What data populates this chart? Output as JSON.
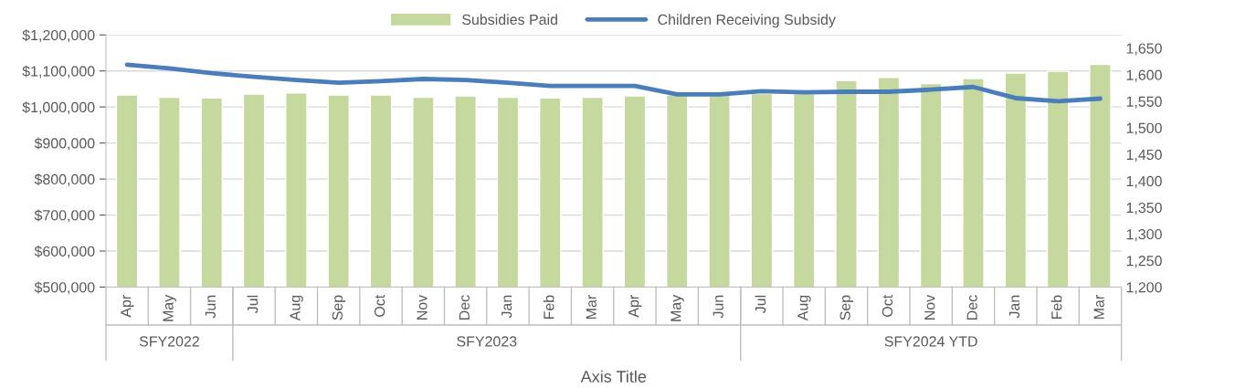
{
  "chart_data": {
    "type": "bar",
    "xlabel": "Axis Title",
    "categories": [
      "Apr",
      "May",
      "Jun",
      "Jul",
      "Aug",
      "Sep",
      "Oct",
      "Nov",
      "Dec",
      "Jan",
      "Feb",
      "Mar",
      "Apr",
      "May",
      "Jun",
      "Jul",
      "Aug",
      "Sep",
      "Oct",
      "Nov",
      "Dec",
      "Jan",
      "Feb",
      "Mar"
    ],
    "series": [
      {
        "name": "Subsidies Paid",
        "color": "#c5d89e",
        "values": [
          1033000,
          1027000,
          1025000,
          1036000,
          1039000,
          1033000,
          1033000,
          1027000,
          1031000,
          1027000,
          1025000,
          1027000,
          1031000,
          1033000,
          1033000,
          1037000,
          1037000,
          1073000,
          1082000,
          1065000,
          1079000,
          1094000,
          1099000,
          1118000
        ]
      },
      {
        "name": "Children Receiving Subsidy",
        "type": "line",
        "axis": "y2",
        "color": "#4a7ebb",
        "values": [
          1619,
          1612,
          1603,
          1596,
          1590,
          1585,
          1588,
          1592,
          1590,
          1585,
          1579,
          1579,
          1579,
          1563,
          1563,
          1569,
          1567,
          1568,
          1568,
          1572,
          1577,
          1556,
          1550,
          1555
        ]
      }
    ],
    "ylim": [
      500000,
      1200000
    ],
    "yticks": [
      {
        "value": 500000,
        "label": "$500,000"
      },
      {
        "value": 600000,
        "label": "$600,000"
      },
      {
        "value": 700000,
        "label": "$700,000"
      },
      {
        "value": 800000,
        "label": "$800,000"
      },
      {
        "value": 900000,
        "label": "$900,000"
      },
      {
        "value": 1000000,
        "label": "$1,000,000"
      },
      {
        "value": 1100000,
        "label": "$1,100,000"
      },
      {
        "value": 1200000,
        "label": "$1,200,000"
      }
    ],
    "y2lim": [
      1200,
      1675
    ],
    "y2ticks": [
      {
        "value": 1200,
        "label": "1,200"
      },
      {
        "value": 1250,
        "label": "1,250"
      },
      {
        "value": 1300,
        "label": "1,300"
      },
      {
        "value": 1350,
        "label": "1,350"
      },
      {
        "value": 1400,
        "label": "1,400"
      },
      {
        "value": 1450,
        "label": "1,450"
      },
      {
        "value": 1500,
        "label": "1,500"
      },
      {
        "value": 1550,
        "label": "1,550"
      },
      {
        "value": 1600,
        "label": "1,600"
      },
      {
        "value": 1650,
        "label": "1,650"
      }
    ],
    "grid": "y",
    "legend": "top",
    "annotations": [
      "SFY2022",
      "SFY2023",
      "SFY2024 YTD"
    ]
  }
}
